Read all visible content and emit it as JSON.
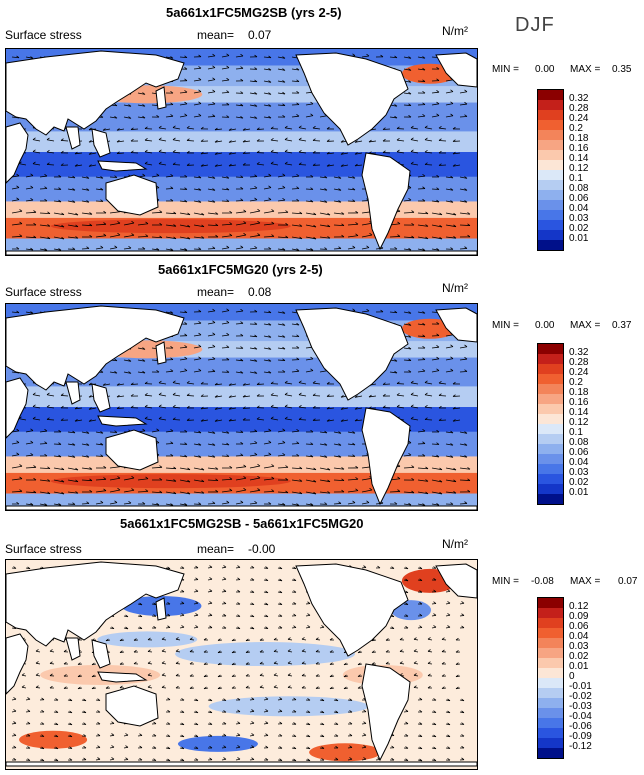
{
  "season": "DJF",
  "panels": [
    {
      "title": "5a661x1FC5MG2SB (yrs 2-5)",
      "label": "Surface stress",
      "mean_label": "mean=",
      "mean_value": "0.07",
      "unit": "N/m²",
      "min_label": "MIN =",
      "min_value": "0.00",
      "max_label": "MAX =",
      "max_value": "0.35",
      "kind": "full"
    },
    {
      "title": "5a661x1FC5MG20 (yrs 2-5)",
      "label": "Surface stress",
      "mean_label": "mean=",
      "mean_value": "0.08",
      "unit": "N/m²",
      "min_label": "MIN =",
      "min_value": "0.00",
      "max_label": "MAX =",
      "max_value": "0.37",
      "kind": "full"
    },
    {
      "title": "5a661x1FC5MG2SB - 5a661x1FC5MG20",
      "label": "Surface stress",
      "mean_label": "mean=",
      "mean_value": "-0.00",
      "unit": "N/m²",
      "min_label": "MIN =",
      "min_value": "-0.08",
      "max_label": "MAX =",
      "max_value": "0.07",
      "kind": "diff"
    }
  ],
  "chart_data": [
    {
      "type": "heatmap",
      "title": "5a661x1FC5MG2SB (yrs 2-5)",
      "variable": "Surface stress",
      "units": "N/m2",
      "season": "DJF",
      "mean": 0.07,
      "min": 0.0,
      "max": 0.35,
      "colorbar_levels": [
        "0.32",
        "0.28",
        "0.24",
        "0.2",
        "0.18",
        "0.16",
        "0.14",
        "0.12",
        "0.1",
        "0.08",
        "0.06",
        "0.04",
        "0.03",
        "0.02",
        "0.01"
      ],
      "colorbar_colors": [
        "#8b0000",
        "#c4201a",
        "#e0401f",
        "#f06030",
        "#f3845a",
        "#f7a583",
        "#fbc9ad",
        "#fce6d6",
        "#dbe8f8",
        "#b5cdf2",
        "#8eb0ee",
        "#6a91ea",
        "#4876e8",
        "#2a55e0",
        "#1436c8",
        "#00108a"
      ]
    },
    {
      "type": "heatmap",
      "title": "5a661x1FC5MG20 (yrs 2-5)",
      "variable": "Surface stress",
      "units": "N/m2",
      "season": "DJF",
      "mean": 0.08,
      "min": 0.0,
      "max": 0.37,
      "colorbar_levels": [
        "0.32",
        "0.28",
        "0.24",
        "0.2",
        "0.18",
        "0.16",
        "0.14",
        "0.12",
        "0.1",
        "0.08",
        "0.06",
        "0.04",
        "0.03",
        "0.02",
        "0.01"
      ],
      "colorbar_colors": [
        "#8b0000",
        "#c4201a",
        "#e0401f",
        "#f06030",
        "#f3845a",
        "#f7a583",
        "#fbc9ad",
        "#fce6d6",
        "#dbe8f8",
        "#b5cdf2",
        "#8eb0ee",
        "#6a91ea",
        "#4876e8",
        "#2a55e0",
        "#1436c8",
        "#00108a"
      ]
    },
    {
      "type": "heatmap",
      "title": "5a661x1FC5MG2SB - 5a661x1FC5MG20",
      "variable": "Surface stress",
      "units": "N/m2",
      "season": "DJF",
      "mean": -0.0,
      "min": -0.08,
      "max": 0.07,
      "colorbar_levels": [
        "0.12",
        "0.09",
        "0.06",
        "0.04",
        "0.03",
        "0.02",
        "0.01",
        "0",
        "-0.01",
        "-0.02",
        "-0.03",
        "-0.04",
        "-0.06",
        "-0.09",
        "-0.12"
      ],
      "colorbar_colors": [
        "#8b0000",
        "#c4201a",
        "#e0401f",
        "#f06030",
        "#f3845a",
        "#f7a583",
        "#fbc9ad",
        "#fce6d6",
        "#dbe8f8",
        "#b5cdf2",
        "#8eb0ee",
        "#6a91ea",
        "#4876e8",
        "#2a55e0",
        "#1436c8",
        "#00108a"
      ]
    }
  ]
}
